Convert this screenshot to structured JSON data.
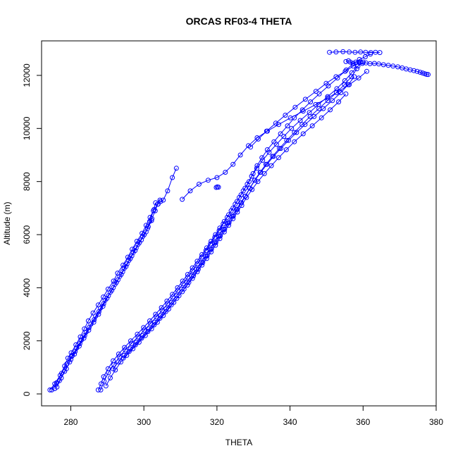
{
  "chart_data": {
    "type": "line",
    "title": "ORCAS RF03-4 THETA",
    "xlabel": "THETA",
    "ylabel": "Altitude (m)",
    "xlim": [
      272,
      380
    ],
    "ylim": [
      -450,
      13300
    ],
    "x_ticks": [
      280,
      300,
      320,
      340,
      360,
      380
    ],
    "y_ticks": [
      0,
      2000,
      4000,
      6000,
      8000,
      10000,
      12000
    ],
    "grid": false,
    "legend": "none",
    "color": "#0000ff",
    "markers": "open-circle",
    "series": [
      {
        "x": [
          274.3,
          275.6,
          277.1,
          278.3,
          279.2,
          280.1,
          281.4,
          282.6,
          283.7,
          284.8,
          286.1,
          287.5,
          288.9,
          290.2,
          291.7,
          292.8,
          294.3,
          295.6,
          296.8,
          298.1,
          299.5,
          300.6,
          301.7,
          302.8,
          303.9,
          304.6,
          305.3,
          306.5,
          307.8,
          308.9
        ],
        "y": [
          150,
          380,
          700,
          1050,
          1350,
          1550,
          1850,
          2150,
          2450,
          2750,
          3050,
          3350,
          3650,
          3950,
          4250,
          4550,
          4850,
          5150,
          5450,
          5750,
          6050,
          6350,
          6650,
          6950,
          7150,
          7250,
          7300,
          7650,
          8150,
          8500
        ]
      },
      {
        "x": [
          275.6,
          276.9,
          278.3,
          279.7,
          280.4,
          281.0,
          282.3,
          283.6,
          284.9,
          286.3,
          287.6,
          288.8,
          289.9,
          291.2,
          292.5,
          293.8,
          295.1,
          296.3,
          297.6,
          298.8,
          300.1,
          301.2,
          302.2,
          303.1,
          303.8,
          304.4
        ],
        "y": [
          200,
          500,
          850,
          1200,
          1450,
          1500,
          1800,
          2100,
          2400,
          2700,
          3000,
          3300,
          3600,
          3900,
          4200,
          4500,
          4800,
          5100,
          5400,
          5700,
          6000,
          6300,
          6600,
          6900,
          7150,
          7300
        ]
      },
      {
        "x": [
          276.2,
          277.4,
          278.8,
          280.0,
          281.2,
          282.5,
          283.8,
          285.0,
          286.4,
          287.7,
          289.0,
          290.3,
          291.6,
          292.9,
          294.2,
          295.4,
          296.7,
          297.9,
          299.3,
          300.6,
          301.6,
          302.6,
          303.2
        ],
        "y": [
          260,
          600,
          950,
          1300,
          1600,
          1900,
          2200,
          2500,
          2800,
          3100,
          3400,
          3700,
          4000,
          4300,
          4600,
          4900,
          5200,
          5500,
          5800,
          6100,
          6500,
          6900,
          7200
        ]
      },
      {
        "x": [
          274.8,
          276.1,
          277.5,
          278.9,
          280.3,
          281.6,
          282.9,
          284.2,
          285.5,
          286.8,
          288.1,
          289.4,
          290.8,
          292.1,
          293.4,
          294.6,
          295.9,
          297.1,
          298.4,
          299.7,
          301.0,
          302.1
        ],
        "y": [
          150,
          420,
          780,
          1130,
          1420,
          1730,
          2030,
          2330,
          2630,
          2930,
          3230,
          3530,
          3830,
          4130,
          4430,
          4730,
          5030,
          5330,
          5630,
          5930,
          6230,
          6530
        ]
      },
      {
        "x": [
          287.5,
          288.3,
          289.0,
          290.2,
          291.6,
          293.1,
          294.7,
          296.4,
          298.2,
          299.9,
          301.6,
          303.2,
          304.8,
          306.3,
          307.8,
          309.2,
          310.6,
          312.0,
          313.3,
          314.6,
          315.9,
          317.2,
          318.4,
          319.6,
          320.8,
          322.0,
          323.2,
          324.4,
          325.5,
          326.6,
          327.7,
          328.8,
          329.9,
          331.0,
          332.3,
          333.8,
          335.6,
          337.4,
          339.3,
          341.2,
          343.4,
          345.6,
          348.0,
          350.5,
          353.0,
          355.4,
          357.3,
          359.0,
          360.6,
          362.0
        ],
        "y": [
          150,
          380,
          650,
          950,
          1250,
          1500,
          1750,
          2000,
          2250,
          2500,
          2750,
          3000,
          3250,
          3500,
          3750,
          4000,
          4250,
          4500,
          4750,
          5000,
          5250,
          5500,
          5750,
          6000,
          6250,
          6500,
          6750,
          7000,
          7250,
          7500,
          7750,
          8000,
          8300,
          8600,
          8900,
          9200,
          9500,
          9800,
          10100,
          10400,
          10700,
          11000,
          11300,
          11600,
          11900,
          12200,
          12450,
          12600,
          12700,
          12800
        ]
      },
      {
        "x": [
          288.2,
          289.1,
          290.3,
          291.8,
          293.3,
          294.9,
          296.6,
          298.4,
          300.1,
          301.8,
          303.4,
          305.0,
          306.5,
          307.9,
          309.3,
          310.7,
          312.0,
          313.3,
          314.6,
          315.8,
          317.0,
          318.2,
          319.4,
          320.6,
          321.7,
          322.8,
          323.9,
          325.0,
          326.1,
          327.2,
          328.3,
          329.5,
          330.9,
          332.5,
          334.3,
          336.3,
          338.3,
          340.4,
          342.8,
          345.3,
          347.8,
          350.3,
          352.8,
          355.0,
          356.9,
          358.6,
          360.0
        ],
        "y": [
          150,
          480,
          800,
          1100,
          1400,
          1650,
          1900,
          2150,
          2400,
          2650,
          2900,
          3150,
          3400,
          3650,
          3900,
          4150,
          4400,
          4650,
          4900,
          5150,
          5400,
          5650,
          5900,
          6150,
          6400,
          6650,
          6900,
          7150,
          7400,
          7650,
          7900,
          8200,
          8500,
          8800,
          9100,
          9400,
          9700,
          10000,
          10300,
          10600,
          10900,
          11200,
          11500,
          11800,
          12100,
          12350,
          12500
        ]
      },
      {
        "x": [
          289.6,
          290.8,
          292.2,
          293.7,
          295.3,
          297.0,
          298.7,
          300.4,
          302.1,
          303.7,
          305.3,
          306.8,
          308.2,
          309.6,
          311.0,
          312.3,
          313.6,
          314.9,
          316.1,
          317.3,
          318.5,
          319.7,
          320.9,
          322.1,
          323.3,
          324.5,
          325.6,
          326.7,
          327.8,
          329.0,
          330.3,
          331.8,
          333.4,
          335.2,
          337.1,
          339.1,
          341.2,
          343.3,
          345.5,
          347.9,
          350.3,
          352.7,
          354.9,
          356.8,
          358.3
        ],
        "y": [
          300,
          600,
          900,
          1200,
          1450,
          1700,
          1950,
          2200,
          2450,
          2700,
          2950,
          3200,
          3450,
          3700,
          3950,
          4200,
          4450,
          4700,
          4950,
          5200,
          5450,
          5700,
          5950,
          6200,
          6450,
          6700,
          6950,
          7200,
          7450,
          7750,
          8050,
          8350,
          8650,
          8950,
          9250,
          9550,
          9850,
          10150,
          10450,
          10750,
          11050,
          11350,
          11650,
          11950,
          12250
        ]
      },
      {
        "x": [
          291.5,
          293.0,
          294.6,
          296.3,
          298.0,
          299.7,
          301.4,
          303.0,
          304.6,
          306.1,
          307.6,
          309.0,
          310.4,
          311.8,
          313.1,
          314.4,
          315.7,
          316.9,
          318.1,
          319.3,
          320.5,
          321.7,
          322.9,
          324.1,
          325.3,
          326.5,
          327.7,
          329.0,
          330.4,
          332.0,
          333.7,
          335.5,
          337.5,
          339.6,
          341.8,
          344.1,
          346.6,
          349.1,
          351.6,
          353.9,
          355.9,
          357.6
        ],
        "y": [
          950,
          1200,
          1450,
          1700,
          1950,
          2200,
          2450,
          2700,
          2950,
          3200,
          3450,
          3700,
          3950,
          4200,
          4450,
          4700,
          4950,
          5200,
          5450,
          5700,
          5950,
          6200,
          6450,
          6700,
          6950,
          7200,
          7450,
          7750,
          8050,
          8350,
          8650,
          8950,
          9250,
          9550,
          9850,
          10150,
          10450,
          10750,
          11050,
          11350,
          11650,
          11950
        ]
      },
      {
        "x": [
          294.4,
          296.0,
          297.7,
          299.4,
          301.1,
          302.8,
          304.4,
          306.0,
          307.5,
          309.0,
          310.5,
          311.9,
          313.3,
          314.6,
          315.9,
          317.2,
          318.4,
          319.6,
          320.8,
          322.0,
          323.2,
          324.4,
          325.6,
          326.8,
          328.1,
          329.6,
          331.2,
          333.0,
          334.9,
          336.9,
          339.0,
          341.2,
          343.6,
          346.1,
          348.6,
          351.0,
          353.3,
          355.3
        ],
        "y": [
          1350,
          1600,
          1850,
          2100,
          2350,
          2600,
          2850,
          3100,
          3350,
          3600,
          3850,
          4100,
          4350,
          4600,
          4850,
          5100,
          5350,
          5600,
          5850,
          6100,
          6350,
          6600,
          6850,
          7100,
          7400,
          7700,
          8000,
          8300,
          8600,
          8900,
          9200,
          9500,
          9800,
          10100,
          10400,
          10700,
          11000,
          11300
        ]
      },
      {
        "x": [
          310.5,
          312.7,
          315.1,
          317.6,
          320.0,
          322.3,
          324.4,
          326.4,
          328.6,
          331.0,
          333.8,
          336.9,
          340.1,
          343.6,
          347.0,
          350.3,
          353.4,
          356.2,
          358.8,
          361.0
        ],
        "y": [
          7330,
          7650,
          7900,
          8050,
          8150,
          8350,
          8650,
          9000,
          9350,
          9650,
          9900,
          10150,
          10400,
          10650,
          10900,
          11150,
          11400,
          11650,
          11900,
          12150
        ]
      },
      {
        "x": [
          329.2,
          331.3,
          333.6,
          336.1,
          338.7,
          341.4,
          344.2,
          347.1,
          349.9,
          352.6,
          355.1,
          357.3,
          359.3
        ],
        "y": [
          9300,
          9600,
          9900,
          10200,
          10500,
          10800,
          11100,
          11400,
          11700,
          11950,
          12150,
          12350,
          12500
        ]
      },
      {
        "x": [
          355.3,
          356.0,
          356.5,
          357.2,
          358.0,
          358.9,
          359.8,
          360.8,
          361.9,
          363.1,
          364.3,
          365.6,
          366.9,
          368.2,
          369.5,
          370.7,
          371.8,
          372.9,
          373.9,
          374.8,
          375.6,
          376.3,
          376.9,
          377.4,
          377.8
        ],
        "y": [
          12520,
          12550,
          12500,
          12450,
          12500,
          12480,
          12450,
          12470,
          12440,
          12450,
          12430,
          12400,
          12380,
          12350,
          12320,
          12280,
          12240,
          12210,
          12180,
          12150,
          12120,
          12090,
          12060,
          12040,
          12030
        ]
      },
      {
        "x": [
          350.8,
          352.6,
          354.5,
          356.2,
          357.8,
          359.3,
          360.7,
          362.1,
          363.4,
          364.6
        ],
        "y": [
          12870,
          12880,
          12890,
          12880,
          12870,
          12880,
          12870,
          12860,
          12870,
          12860
        ]
      },
      {
        "x": [
          319.8,
          320.1,
          320.4
        ],
        "y": [
          7780,
          7800,
          7790
        ]
      }
    ]
  }
}
